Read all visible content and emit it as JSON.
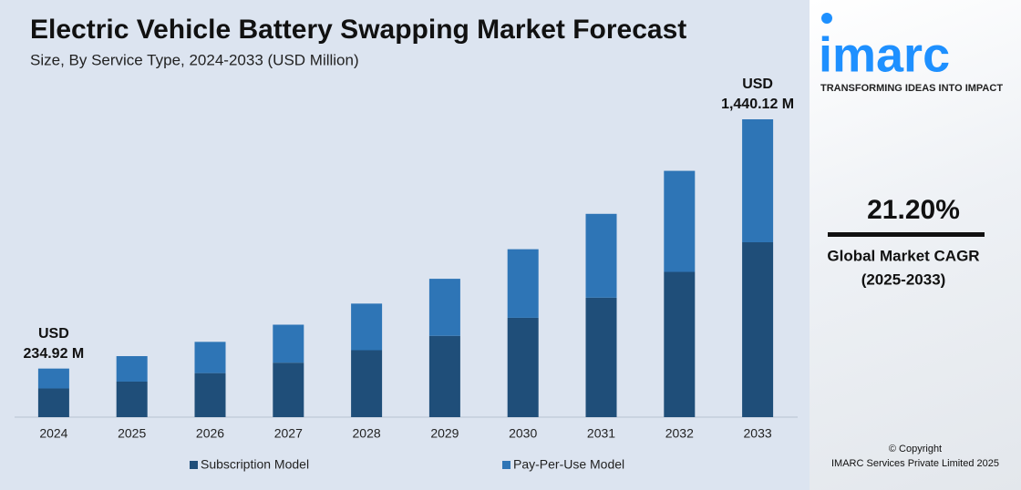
{
  "chart_data": {
    "type": "stacked_bar",
    "title": "Electric Vehicle Battery Swapping Market Forecast",
    "subtitle": "Size, By Service Type, 2024-2033 (USD Million)",
    "categories": [
      "2024",
      "2025",
      "2026",
      "2027",
      "2028",
      "2029",
      "2030",
      "2031",
      "2032",
      "2033"
    ],
    "series": [
      {
        "name": "Subscription Model",
        "color": "#1f4e79",
        "values": [
          138.82,
          171.8,
          213.0,
          263.4,
          323.7,
          393.0,
          480.4,
          577.7,
          702.4,
          845.6
        ]
      },
      {
        "name": "Pay-Per-Use Model",
        "color": "#2e75b6",
        "values": [
          96.1,
          123.2,
          151.0,
          183.6,
          225.3,
          276.0,
          331.6,
          405.3,
          488.6,
          594.52
        ]
      }
    ],
    "annotations": [
      {
        "category": "2024",
        "lines": [
          "USD",
          "234.92 M"
        ]
      },
      {
        "category": "2033",
        "lines": [
          "USD",
          "1,440.12 M"
        ]
      }
    ],
    "legend": "bottom"
  },
  "sidebar": {
    "logo": "imarc",
    "tagline": "TRANSFORMING IDEAS INTO IMPACT",
    "cagr": "21.20%",
    "cagr_label": [
      "Global Market CAGR",
      "(2025-2033)"
    ],
    "copyright": [
      "© Copyright",
      "IMARC Services Private Limited 2025"
    ]
  }
}
